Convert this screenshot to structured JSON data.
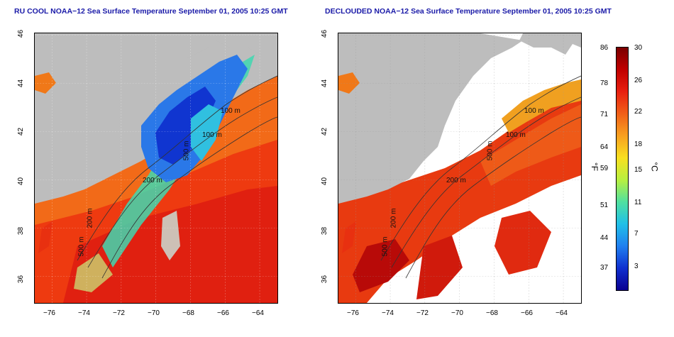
{
  "left_panel": {
    "title": "RU COOL NOAA−12 Sea Surface Temperature September 01, 2005 10:25 GMT",
    "contour_labels": [
      "100 m",
      "100 m",
      "200 m",
      "500 m",
      "200 m",
      "500 m"
    ]
  },
  "right_panel": {
    "title": "DECLOUDED NOAA−12 Sea Surface Temperature September 01, 2005 10:25 GMT",
    "contour_labels": [
      "100 m",
      "100 m",
      "200 m",
      "500 m",
      "200 m",
      "500 m"
    ]
  },
  "axes": {
    "x_ticks": [
      "−76",
      "−74",
      "−72",
      "−70",
      "−68",
      "−66",
      "−64"
    ],
    "y_ticks": [
      "36",
      "38",
      "40",
      "42",
      "44",
      "46"
    ]
  },
  "colorbar": {
    "fahrenheit_ticks": [
      "86",
      "78",
      "71",
      "64",
      "59",
      "51",
      "44",
      "37"
    ],
    "celsius_ticks": [
      "30",
      "26",
      "22",
      "18",
      "15",
      "11",
      "7",
      "3"
    ],
    "fahrenheit_unit": "°F",
    "celsius_unit": "°C",
    "colors": [
      "#7a0000",
      "#c00000",
      "#e82010",
      "#f06018",
      "#f8a020",
      "#f8e020",
      "#b8f040",
      "#50e0a0",
      "#20c0e8",
      "#2080f0",
      "#1030d0",
      "#0a0090"
    ]
  }
}
